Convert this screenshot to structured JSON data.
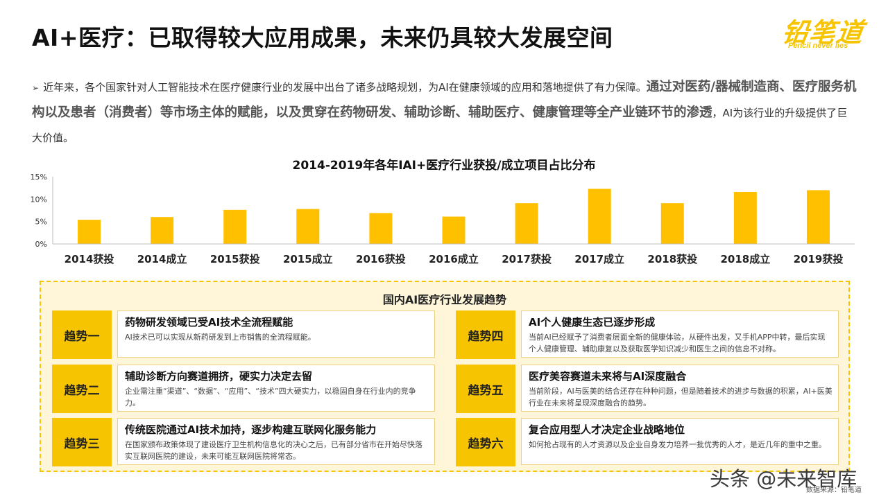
{
  "header": {
    "title": "AI+医疗：已取得较大应用成果，未来仍具较大发展空间",
    "logo_text": "铅笔道",
    "logo_tagline": "Pencil never lies"
  },
  "intro": {
    "bullet": "➢",
    "text_1": "近年来，各个国家针对人工智能技术在医疗健康行业的发展中出台了诸多战略规划，为AI在健康领域的应用和落地提供了有力保障。",
    "text_strong": "通过对医药/器械制造商、医疗服务机构以及患者（消费者）等市场主体的赋能，以及贯穿在药物研发、辅助诊断、辅助医疗、健康管理等全产业链环节的渗透",
    "text_2": "，AI为该行业的升级提供了巨大价值。"
  },
  "chart_data": {
    "type": "bar",
    "title": "2014-2019年各年IAI+医疗行业获投/成立项目占比分布",
    "xlabel": "",
    "ylabel": "",
    "categories": [
      "2014获投",
      "2014成立",
      "2015获投",
      "2015成立",
      "2016获投",
      "2016成立",
      "2017获投",
      "2017成立",
      "2018获投",
      "2018成立",
      "2019获投"
    ],
    "values": [
      5.4,
      6.0,
      7.6,
      7.8,
      6.9,
      6.1,
      9.1,
      12.3,
      9.1,
      11.6,
      12.0
    ],
    "yticks": [
      "0%",
      "5%",
      "10%",
      "15%"
    ],
    "ylim": [
      0,
      15
    ],
    "grid": false,
    "legend": "none",
    "bar_color": "#ffc000"
  },
  "trends": {
    "title": "国内AI医疗行业发展趋势",
    "items": [
      {
        "tag": "趋势一",
        "heading": "药物研发领域已受AI技术全流程赋能",
        "desc": "AI技术已可以实现从新药研发到上市销售的全流程赋能。"
      },
      {
        "tag": "趋势二",
        "heading": "辅助诊断方向赛道拥挤，硬实力决定去留",
        "desc": "企业需注重“渠道”、“数据”、“应用”、“技术”四大硬实力，以稳固自身在行业内的竞争力。"
      },
      {
        "tag": "趋势三",
        "heading": "传统医院通过AI技术加持，逐步构建互联网化服务能力",
        "desc": "在国家颁布政策体现了建设医疗卫生机构信息化的决心之后，已有部分省市在开始尽快落实互联网医院的建设，未来可能互联网医院将常态。"
      },
      {
        "tag": "趋势四",
        "heading": "AI个人健康生态已逐步形成",
        "desc": "当前AI已经赋予了消费者层面全新的健康体验，从硬件出发，又手机APP中转，最后实现个人健康管理、辅助康复以及获取医学知识减少和医生之间的信息不对称。"
      },
      {
        "tag": "趋势五",
        "heading": "医疗美容赛道未来将与AI深度融合",
        "desc": "当前阶段，AI与医美的结合还存在种种问题，但是随着技术的进步与数据的积累，AI+医美行业在未来将呈现深度融合的趋势。"
      },
      {
        "tag": "趋势六",
        "heading": "复合应用型人才决定企业战略地位",
        "desc": "如何抢占现有的人才资源以及企业自身发力培养一批优秀的人才，是近几年的重中之重。"
      }
    ]
  },
  "footer": {
    "watermark": "头条 @未来智库",
    "source": "数据来源：铅笔道"
  },
  "colors": {
    "accent": "#f6c400",
    "panel_bg": "#fff6d9"
  }
}
